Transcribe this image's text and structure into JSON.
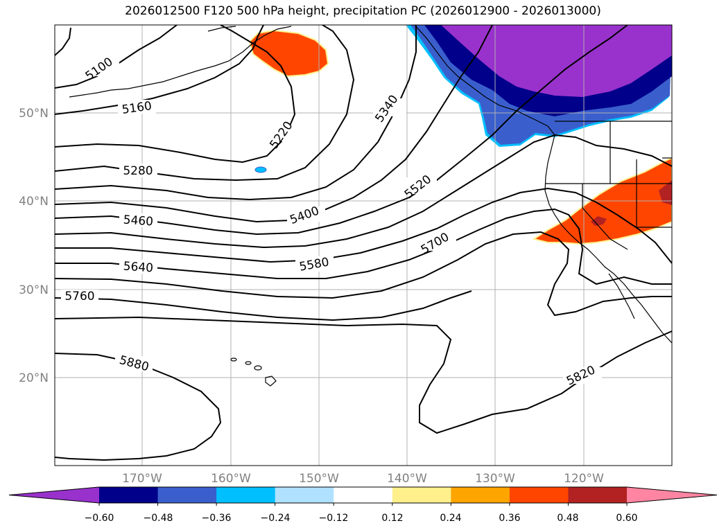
{
  "title": "2026012500 F120 500 hPa height, precipitation PC (2026012900 - 2026013000)",
  "map": {
    "lat_labels": [
      "50°N",
      "40°N",
      "30°N",
      "20°N"
    ],
    "lon_labels": [
      "170°W",
      "160°W",
      "150°W",
      "140°W",
      "130°W",
      "120°W"
    ],
    "contour_labels": [
      "5100",
      "5160",
      "5220",
      "5280",
      "5340",
      "5400",
      "5460",
      "5520",
      "5580",
      "5640",
      "5700",
      "5760",
      "5820",
      "5880"
    ]
  },
  "colorbar": {
    "ticks": [
      "−0.60",
      "−0.48",
      "−0.36",
      "−0.24",
      "−0.12",
      "0.12",
      "0.24",
      "0.36",
      "0.48",
      "0.60"
    ],
    "colors": [
      "#9932cc",
      "#00008b",
      "#3a5fcd",
      "#00bfff",
      "#b0e2ff",
      "#ffffff",
      "#fff08c",
      "#ffa500",
      "#ff4500",
      "#b22222",
      "#ff85a2",
      "#9932cc"
    ]
  },
  "colors": {
    "negative_strong": "#9932cc",
    "negative_dark": "#00008b",
    "negative_mid": "#3a5fcd",
    "positive_orange": "#ff4500",
    "positive_dark": "#b22222",
    "grid": "#b0b0b0"
  }
}
